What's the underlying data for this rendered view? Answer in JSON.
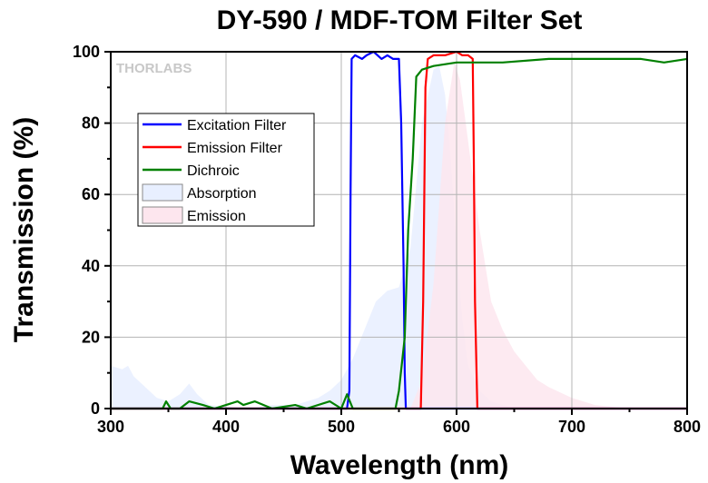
{
  "chart_data": {
    "type": "line",
    "title": "DY-590 / MDF-TOM Filter Set",
    "xlabel": "Wavelength (nm)",
    "ylabel": "Transmission (%)",
    "xlim": [
      300,
      800
    ],
    "ylim": [
      0,
      100
    ],
    "x_ticks": [
      300,
      400,
      500,
      600,
      700,
      800
    ],
    "y_ticks": [
      0,
      20,
      40,
      60,
      80,
      100
    ],
    "grid": true,
    "legend_position": "top-left",
    "watermark": "THORLABS",
    "series": [
      {
        "name": "Excitation Filter",
        "kind": "line",
        "color": "#0000ff",
        "points": [
          [
            300,
            0
          ],
          [
            505,
            0
          ],
          [
            507,
            5
          ],
          [
            508,
            60
          ],
          [
            509,
            98
          ],
          [
            512,
            99
          ],
          [
            518,
            98
          ],
          [
            522,
            99
          ],
          [
            528,
            100
          ],
          [
            535,
            98
          ],
          [
            540,
            99
          ],
          [
            545,
            98
          ],
          [
            550,
            98
          ],
          [
            552,
            80
          ],
          [
            554,
            40
          ],
          [
            555,
            10
          ],
          [
            556,
            0
          ],
          [
            800,
            0
          ]
        ]
      },
      {
        "name": "Emission Filter",
        "kind": "line",
        "color": "#ff0000",
        "points": [
          [
            300,
            0
          ],
          [
            569,
            0
          ],
          [
            571,
            30
          ],
          [
            573,
            90
          ],
          [
            575,
            98
          ],
          [
            580,
            99
          ],
          [
            590,
            99
          ],
          [
            600,
            100
          ],
          [
            605,
            99
          ],
          [
            610,
            99
          ],
          [
            614,
            98
          ],
          [
            615,
            70
          ],
          [
            616,
            30
          ],
          [
            618,
            0
          ],
          [
            800,
            0
          ]
        ]
      },
      {
        "name": "Dichroic",
        "kind": "line",
        "color": "#008000",
        "points": [
          [
            300,
            0
          ],
          [
            345,
            0
          ],
          [
            348,
            2
          ],
          [
            352,
            0
          ],
          [
            360,
            0
          ],
          [
            368,
            2
          ],
          [
            380,
            1
          ],
          [
            390,
            0
          ],
          [
            410,
            2
          ],
          [
            415,
            1
          ],
          [
            425,
            2
          ],
          [
            440,
            0
          ],
          [
            460,
            1
          ],
          [
            470,
            0
          ],
          [
            490,
            2
          ],
          [
            500,
            0
          ],
          [
            505,
            4
          ],
          [
            510,
            0
          ],
          [
            540,
            0
          ],
          [
            547,
            0
          ],
          [
            550,
            5
          ],
          [
            555,
            20
          ],
          [
            558,
            50
          ],
          [
            562,
            70
          ],
          [
            565,
            93
          ],
          [
            570,
            95
          ],
          [
            580,
            96
          ],
          [
            600,
            97
          ],
          [
            640,
            97
          ],
          [
            680,
            98
          ],
          [
            720,
            98
          ],
          [
            760,
            98
          ],
          [
            780,
            97
          ],
          [
            800,
            98
          ]
        ]
      },
      {
        "name": "Absorption",
        "kind": "area",
        "color": "#e8efff",
        "points": [
          [
            300,
            12
          ],
          [
            310,
            11
          ],
          [
            315,
            12
          ],
          [
            320,
            9
          ],
          [
            330,
            6
          ],
          [
            340,
            3
          ],
          [
            350,
            2
          ],
          [
            360,
            4
          ],
          [
            368,
            7
          ],
          [
            375,
            4
          ],
          [
            385,
            1
          ],
          [
            420,
            0
          ],
          [
            440,
            1
          ],
          [
            460,
            1
          ],
          [
            480,
            3
          ],
          [
            490,
            5
          ],
          [
            500,
            8
          ],
          [
            510,
            14
          ],
          [
            520,
            22
          ],
          [
            530,
            30
          ],
          [
            540,
            33
          ],
          [
            550,
            34
          ],
          [
            560,
            45
          ],
          [
            570,
            80
          ],
          [
            580,
            95
          ],
          [
            585,
            96
          ],
          [
            590,
            88
          ],
          [
            595,
            70
          ],
          [
            600,
            45
          ],
          [
            605,
            25
          ],
          [
            610,
            12
          ],
          [
            620,
            5
          ],
          [
            630,
            2
          ],
          [
            650,
            0
          ],
          [
            800,
            0
          ]
        ]
      },
      {
        "name": "Emission",
        "kind": "area",
        "color": "#fde6ee",
        "points": [
          [
            300,
            0
          ],
          [
            560,
            0
          ],
          [
            570,
            8
          ],
          [
            580,
            35
          ],
          [
            590,
            80
          ],
          [
            598,
            97
          ],
          [
            603,
            92
          ],
          [
            610,
            75
          ],
          [
            620,
            50
          ],
          [
            630,
            30
          ],
          [
            640,
            22
          ],
          [
            650,
            16
          ],
          [
            660,
            12
          ],
          [
            670,
            8
          ],
          [
            680,
            6
          ],
          [
            700,
            3
          ],
          [
            720,
            1
          ],
          [
            750,
            0
          ],
          [
            800,
            0
          ]
        ]
      }
    ]
  }
}
